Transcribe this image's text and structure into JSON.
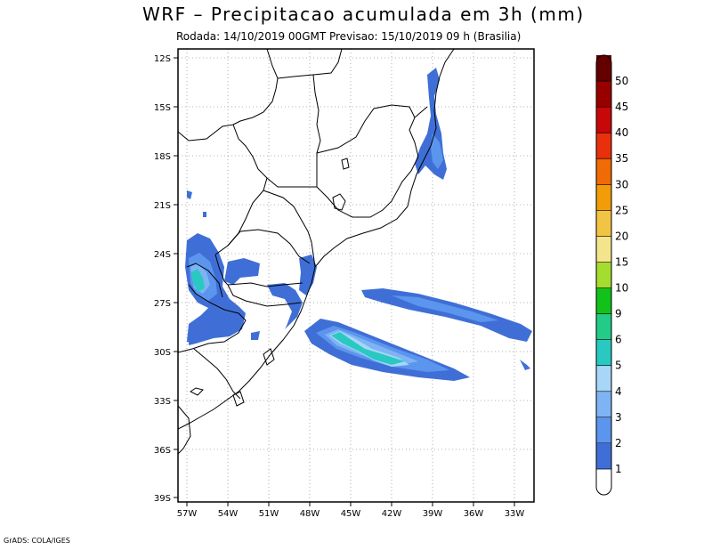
{
  "title": "WRF – Precipitacao acumulada em 3h (mm)",
  "subtitle": "Rodada: 14/10/2019 00GMT Previsao: 15/10/2019 09 h (Brasilia)",
  "footer": "GrADS: COLA/IGES",
  "map": {
    "lat_ticks": [
      "12S",
      "15S",
      "18S",
      "21S",
      "24S",
      "27S",
      "30S",
      "33S",
      "36S",
      "39S"
    ],
    "lon_ticks": [
      "57W",
      "54W",
      "51W",
      "48W",
      "45W",
      "42W",
      "39W",
      "36W",
      "33W"
    ],
    "grid": true
  },
  "colorbar": {
    "levels": [
      "1",
      "2",
      "3",
      "4",
      "5",
      "6",
      "9",
      "10",
      "15",
      "20",
      "25",
      "30",
      "35",
      "40",
      "45",
      "50"
    ],
    "colors": [
      "#ffffff",
      "#3f6fd6",
      "#5b95ee",
      "#7eb4f3",
      "#a8d6f8",
      "#29c9c1",
      "#22cc88",
      "#11c21b",
      "#a4dc30",
      "#f4e58c",
      "#f2c443",
      "#f29c0a",
      "#f06a06",
      "#e8300c",
      "#c80808",
      "#980000",
      "#650000"
    ]
  }
}
